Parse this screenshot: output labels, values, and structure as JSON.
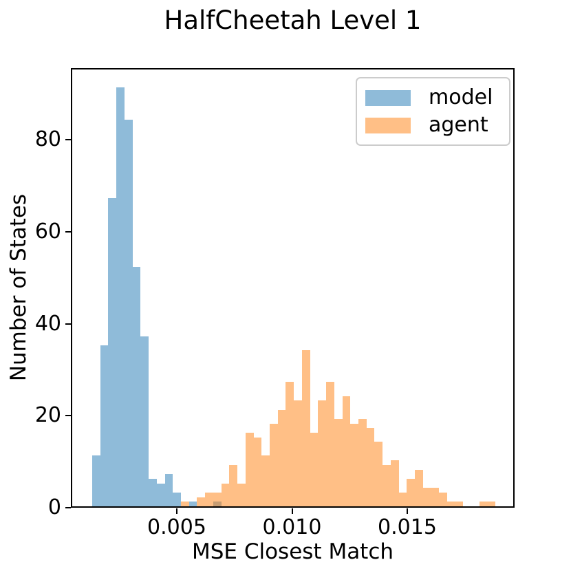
{
  "title": "HalfCheetah Level 1",
  "chart_data": {
    "type": "bar",
    "subtype": "overlapping-histograms",
    "title": "HalfCheetah Level 1",
    "xlabel": "MSE Closest Match",
    "ylabel": "Number of States",
    "xlim": [
      0.000403,
      0.019657
    ],
    "ylim": [
      0,
      95.55
    ],
    "grid": false,
    "legend_position": "upper right",
    "bar_alpha": 0.5,
    "bins": {
      "start": 0.00127,
      "width": 0.00035,
      "count": 50
    },
    "xticks": [
      {
        "value": 0.005,
        "label": "0.005"
      },
      {
        "value": 0.01,
        "label": "0.010"
      },
      {
        "value": 0.015,
        "label": "0.015"
      }
    ],
    "yticks": [
      {
        "value": 0,
        "label": "0"
      },
      {
        "value": 20,
        "label": "20"
      },
      {
        "value": 40,
        "label": "40"
      },
      {
        "value": 60,
        "label": "60"
      },
      {
        "value": 80,
        "label": "80"
      }
    ],
    "series": [
      {
        "name": "model",
        "color": "#1f77b4",
        "counts": [
          11,
          35,
          67,
          91,
          84,
          52,
          37,
          6,
          5,
          7,
          3,
          0,
          1,
          0,
          0,
          1,
          0,
          0,
          0,
          0,
          0,
          0,
          0,
          0,
          0,
          0,
          0,
          0,
          0,
          0,
          0,
          0,
          0,
          0,
          0,
          0,
          0,
          0,
          0,
          0,
          0,
          0,
          0,
          0,
          0,
          0,
          0,
          0,
          0,
          0
        ]
      },
      {
        "name": "agent",
        "color": "#ff7f0e",
        "counts": [
          0,
          0,
          0,
          0,
          0,
          0,
          0,
          0,
          0,
          0,
          0,
          1,
          0,
          2,
          3,
          3,
          5,
          9,
          5,
          16,
          15,
          11,
          18,
          21,
          27,
          23,
          34,
          16,
          23,
          27,
          19,
          24,
          18,
          19,
          17,
          14,
          9,
          10,
          3,
          6,
          8,
          4,
          4,
          3,
          1,
          1,
          0,
          0,
          1,
          1
        ]
      }
    ],
    "legend": [
      {
        "label": "model",
        "color": "#1f77b4"
      },
      {
        "label": "agent",
        "color": "#ff7f0e"
      }
    ]
  }
}
